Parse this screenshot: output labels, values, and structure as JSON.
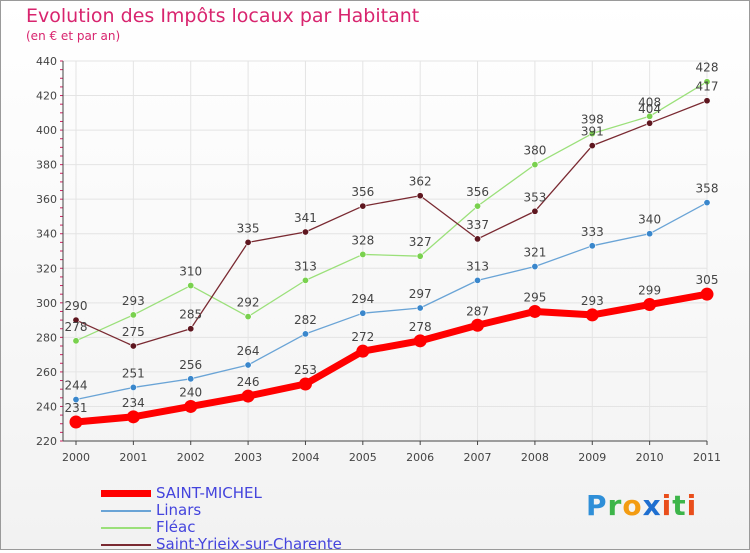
{
  "title": "Evolution des Impôts locaux par Habitant",
  "subtitle": "(en € et par an)",
  "logo_text": "Proxiti",
  "chart_data": {
    "type": "line",
    "x": [
      "2000",
      "2001",
      "2002",
      "2003",
      "2004",
      "2005",
      "2006",
      "2007",
      "2008",
      "2009",
      "2010",
      "2011"
    ],
    "ylim": [
      220,
      440
    ],
    "yticks": [
      220,
      240,
      260,
      280,
      300,
      320,
      340,
      360,
      380,
      400,
      420,
      440
    ],
    "grid": true,
    "legend_position": "bottom-left",
    "series": [
      {
        "name": "SAINT-MICHEL",
        "color": "#ff0000",
        "marker": "#ff0000",
        "width": 7,
        "values": [
          231,
          234,
          240,
          246,
          253,
          272,
          278,
          287,
          295,
          293,
          299,
          305
        ]
      },
      {
        "name": "Linars",
        "color": "#6aa4d6",
        "marker": "#3a87cc",
        "width": 1.3,
        "values": [
          244,
          251,
          256,
          264,
          282,
          294,
          297,
          313,
          321,
          333,
          340,
          358
        ]
      },
      {
        "name": "Fléac",
        "color": "#9be07a",
        "marker": "#79d14e",
        "width": 1.3,
        "values": [
          278,
          293,
          310,
          292,
          313,
          328,
          327,
          356,
          380,
          398,
          408,
          428
        ]
      },
      {
        "name": "Saint-Yrieix-sur-Charente",
        "color": "#7a2a32",
        "marker": "#5e161f",
        "width": 1.3,
        "values": [
          290,
          275,
          285,
          335,
          341,
          356,
          362,
          337,
          353,
          391,
          404,
          417
        ]
      }
    ],
    "data_labels": [
      [
        231,
        234,
        240,
        246,
        253,
        272,
        278,
        287,
        295,
        293,
        299,
        305
      ],
      [
        244,
        251,
        256,
        264,
        282,
        294,
        297,
        313,
        321,
        333,
        340,
        358
      ],
      [
        278,
        293,
        310,
        292,
        313,
        328,
        327,
        356,
        380,
        398,
        408,
        428
      ],
      [
        290,
        275,
        285,
        335,
        341,
        356,
        362,
        337,
        353,
        391,
        404,
        417
      ]
    ]
  }
}
